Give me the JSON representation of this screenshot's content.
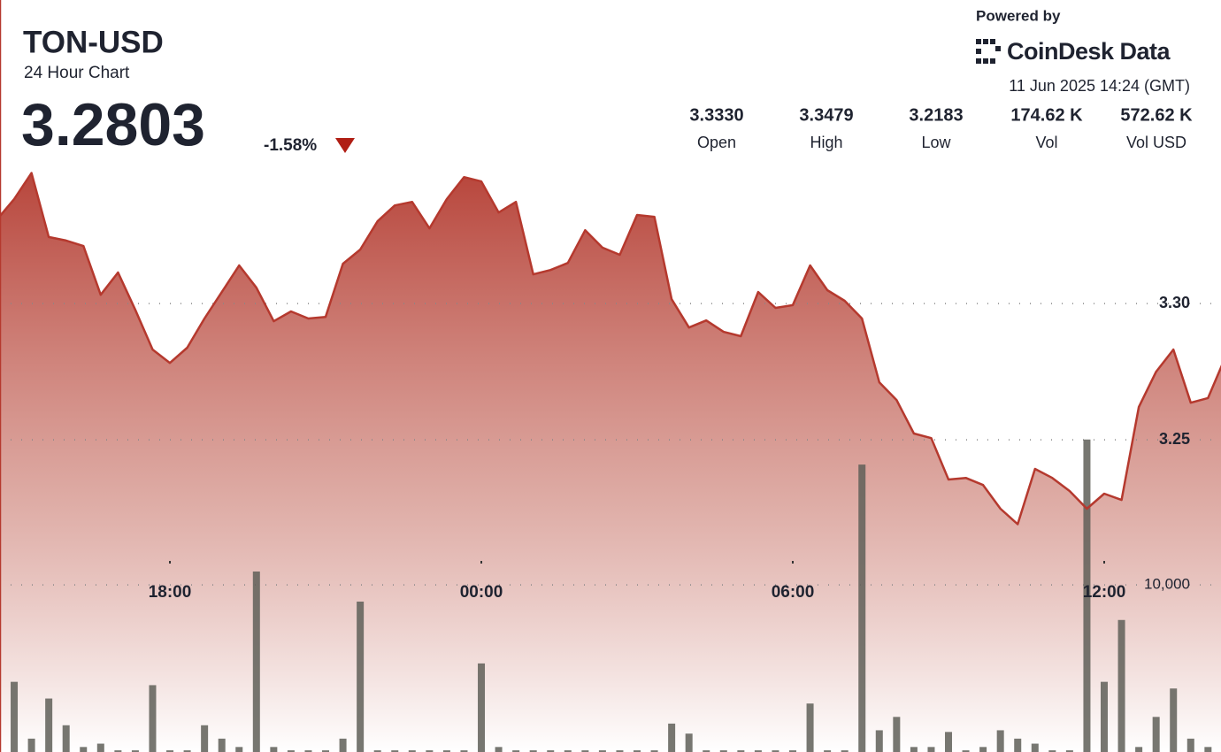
{
  "chart_data": {
    "type": "line",
    "title": "TON-USD",
    "subtitle": "24 Hour Chart",
    "price": "3.2803",
    "change": "-1.58%",
    "powered_by": "Powered by",
    "brand": "CoinDesk Data",
    "timestamp": "11 Jun 2025 14:24 (GMT)",
    "stats": [
      {
        "value": "3.3330",
        "label": "Open"
      },
      {
        "value": "3.3479",
        "label": "High"
      },
      {
        "value": "3.2183",
        "label": "Low"
      },
      {
        "value": "174.62 K",
        "label": "Vol"
      },
      {
        "value": "572.62 K",
        "label": "Vol USD"
      }
    ],
    "series": [
      {
        "name": "Price",
        "color": "#b5392e",
        "values": [
          3.3308,
          3.3383,
          3.3479,
          3.3244,
          3.3231,
          3.3211,
          3.3032,
          3.3114,
          3.2977,
          3.2831,
          3.2782,
          3.2838,
          3.2945,
          3.3042,
          3.314,
          3.3058,
          3.2935,
          3.2971,
          3.2945,
          3.2951,
          3.3146,
          3.3198,
          3.3302,
          3.336,
          3.3373,
          3.3276,
          3.3383,
          3.3464,
          3.3448,
          3.3334,
          3.3373,
          3.3107,
          3.3123,
          3.3149,
          3.3269,
          3.3205,
          3.3179,
          3.3325,
          3.3318,
          3.3016,
          3.2912,
          3.2938,
          3.2896,
          3.288,
          3.3042,
          3.2984,
          3.2994,
          3.314,
          3.3049,
          3.301,
          3.2945,
          3.2711,
          3.2646,
          3.2523,
          3.2506,
          3.2354,
          3.236,
          3.2334,
          3.2247,
          3.219,
          3.2393,
          3.236,
          3.2312,
          3.2247,
          3.2302,
          3.2279,
          3.262,
          3.275,
          3.2831,
          3.2636,
          3.2653,
          3.2803
        ]
      },
      {
        "name": "Volume",
        "color": "#5f5f58",
        "axis": "y2",
        "values": [
          100,
          4200,
          800,
          3200,
          1600,
          300,
          500,
          100,
          100,
          4000,
          100,
          100,
          1600,
          800,
          300,
          10800,
          300,
          100,
          100,
          100,
          800,
          9000,
          100,
          100,
          100,
          100,
          100,
          100,
          5300,
          300,
          100,
          100,
          100,
          100,
          100,
          100,
          100,
          100,
          100,
          1700,
          1100,
          100,
          100,
          100,
          100,
          100,
          100,
          2900,
          100,
          100,
          17200,
          1300,
          2100,
          300,
          300,
          1200,
          100,
          300,
          1300,
          800,
          500,
          100,
          100,
          18700,
          4200,
          7900,
          300,
          2100,
          3800,
          800,
          300,
          100
        ]
      }
    ],
    "xlim": [
      0.18,
      70.75
    ],
    "xticks": [
      {
        "value": 10,
        "label": "18:00"
      },
      {
        "value": 28,
        "label": "00:00"
      },
      {
        "value": 46,
        "label": "06:00"
      },
      {
        "value": 64,
        "label": "12:00"
      }
    ],
    "ylim": [
      3.1354,
      3.4114
    ],
    "yticks": [
      {
        "value": 3.25,
        "label": "3.25"
      },
      {
        "value": 3.3,
        "label": "3.30"
      }
    ],
    "y2lim": [
      0,
      45000
    ],
    "y2ticks": [
      {
        "value": 10000,
        "label": "10,000"
      }
    ],
    "grid": true
  }
}
